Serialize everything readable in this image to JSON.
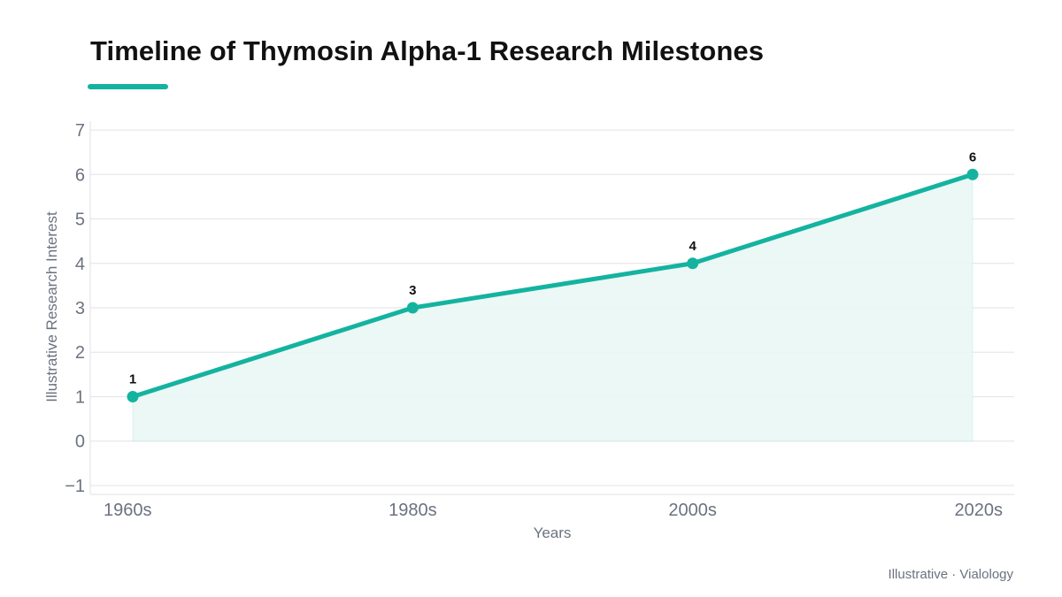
{
  "title": "Timeline of Thymosin Alpha-1 Research Milestones",
  "footer": "Illustrative · Vialology",
  "colors": {
    "accent": "#14b3a0",
    "area_fill": "#eaf7f4",
    "grid": "#e5e7eb",
    "tick_text": "#6b7280",
    "label_text": "#111111"
  },
  "chart_data": {
    "type": "line",
    "title": "Timeline of Thymosin Alpha-1 Research Milestones",
    "xlabel": "Years",
    "ylabel": "Illustrative Research Interest",
    "categories": [
      "1960s",
      "1980s",
      "2000s",
      "2020s"
    ],
    "series": [
      {
        "values": [
          1,
          3,
          4,
          6
        ]
      }
    ],
    "data_labels": [
      "1",
      "3",
      "4",
      "6"
    ],
    "yticks": [
      -1,
      0,
      1,
      2,
      3,
      4,
      5,
      6,
      7
    ],
    "ytick_labels": [
      "−1",
      "0",
      "1",
      "2",
      "3",
      "4",
      "5",
      "6",
      "7"
    ],
    "ylim": [
      -1.2,
      7.2
    ],
    "grid": true,
    "area_fill": true,
    "legend": "none"
  }
}
